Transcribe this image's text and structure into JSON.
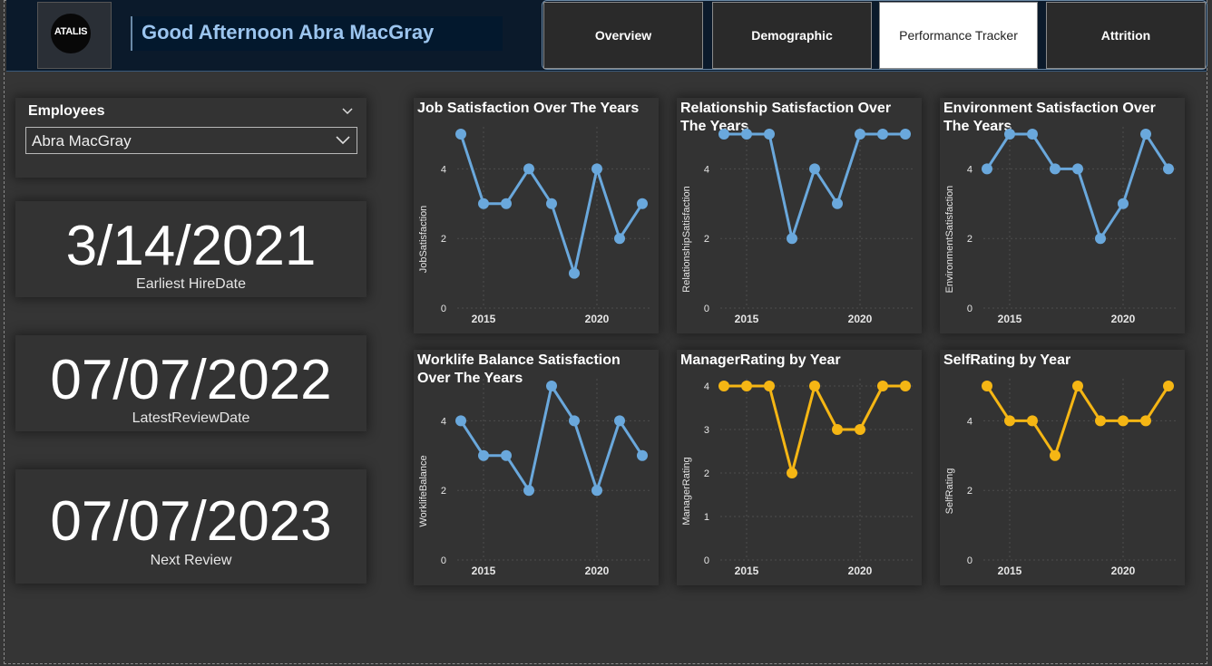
{
  "header": {
    "logo_text": "ATALIS",
    "greeting": "Good Afternoon Abra MacGray",
    "tabs": [
      {
        "label": "Overview",
        "active": false
      },
      {
        "label": "Demographic",
        "active": false
      },
      {
        "label": "Performance Tracker",
        "active": true
      },
      {
        "label": "Attrition",
        "active": false
      }
    ]
  },
  "slicer": {
    "title": "Employees",
    "selected": "Abra MacGray"
  },
  "kpis": [
    {
      "value": "3/14/2021",
      "label": "Earliest HireDate"
    },
    {
      "value": "07/07/2022",
      "label": "LatestReviewDate"
    },
    {
      "value": "07/07/2023",
      "label": "Next Review"
    }
  ],
  "colors": {
    "blue_series": "#6aa8dc",
    "gold_series": "#f5b614",
    "background": "#353535",
    "card": "#333333",
    "header": "#0b1a2b"
  },
  "chart_data": [
    {
      "type": "line",
      "title": "Job Satisfaction Over The Years",
      "ylabel": "JobSatisfaction",
      "xlabel": "",
      "x": [
        2014,
        2015,
        2016,
        2017,
        2018,
        2019,
        2020,
        2021,
        2022
      ],
      "values": [
        5,
        3,
        3,
        4,
        3,
        1,
        4,
        2,
        3
      ],
      "xticks": [
        2015,
        2020
      ],
      "yticks": [
        0,
        2,
        4
      ],
      "ylim": [
        0,
        5
      ],
      "color": "#6aa8dc"
    },
    {
      "type": "line",
      "title": "Relationship Satisfaction Over The Years",
      "ylabel": "RelationshipSatisfaction",
      "xlabel": "",
      "x": [
        2014,
        2015,
        2016,
        2017,
        2018,
        2019,
        2020,
        2021,
        2022
      ],
      "values": [
        5,
        5,
        5,
        2,
        4,
        3,
        5,
        5,
        5
      ],
      "xticks": [
        2015,
        2020
      ],
      "yticks": [
        0,
        2,
        4
      ],
      "ylim": [
        0,
        5
      ],
      "color": "#6aa8dc"
    },
    {
      "type": "line",
      "title": "Environment Satisfaction Over The Years",
      "ylabel": "EnvironmentSatisfaction",
      "xlabel": "",
      "x": [
        2014,
        2015,
        2016,
        2017,
        2018,
        2019,
        2020,
        2021,
        2022
      ],
      "values": [
        4,
        5,
        5,
        4,
        4,
        2,
        3,
        5,
        4
      ],
      "xticks": [
        2015,
        2020
      ],
      "yticks": [
        0,
        2,
        4
      ],
      "ylim": [
        0,
        5
      ],
      "color": "#6aa8dc"
    },
    {
      "type": "line",
      "title": "Worklife Balance Satisfaction Over The Years",
      "ylabel": "WorklifeBalance",
      "xlabel": "",
      "x": [
        2014,
        2015,
        2016,
        2017,
        2018,
        2019,
        2020,
        2021,
        2022
      ],
      "values": [
        4,
        3,
        3,
        2,
        5,
        4,
        2,
        4,
        3
      ],
      "xticks": [
        2015,
        2020
      ],
      "yticks": [
        0,
        2,
        4
      ],
      "ylim": [
        0,
        5
      ],
      "color": "#6aa8dc"
    },
    {
      "type": "line",
      "title": "ManagerRating by Year",
      "ylabel": "ManagerRating",
      "xlabel": "",
      "x": [
        2014,
        2015,
        2016,
        2017,
        2018,
        2019,
        2020,
        2021,
        2022
      ],
      "values": [
        4,
        4,
        4,
        2,
        4,
        3,
        3,
        4,
        4
      ],
      "xticks": [
        2015,
        2020
      ],
      "yticks": [
        0,
        1,
        2,
        3,
        4
      ],
      "ylim": [
        0,
        4
      ],
      "color": "#f5b614"
    },
    {
      "type": "line",
      "title": "SelfRating by Year",
      "ylabel": "SelfRating",
      "xlabel": "",
      "x": [
        2014,
        2015,
        2016,
        2017,
        2018,
        2019,
        2020,
        2021,
        2022
      ],
      "values": [
        5,
        4,
        4,
        3,
        5,
        4,
        4,
        4,
        5
      ],
      "xticks": [
        2015,
        2020
      ],
      "yticks": [
        0,
        2,
        4
      ],
      "ylim": [
        0,
        5
      ],
      "color": "#f5b614"
    }
  ]
}
